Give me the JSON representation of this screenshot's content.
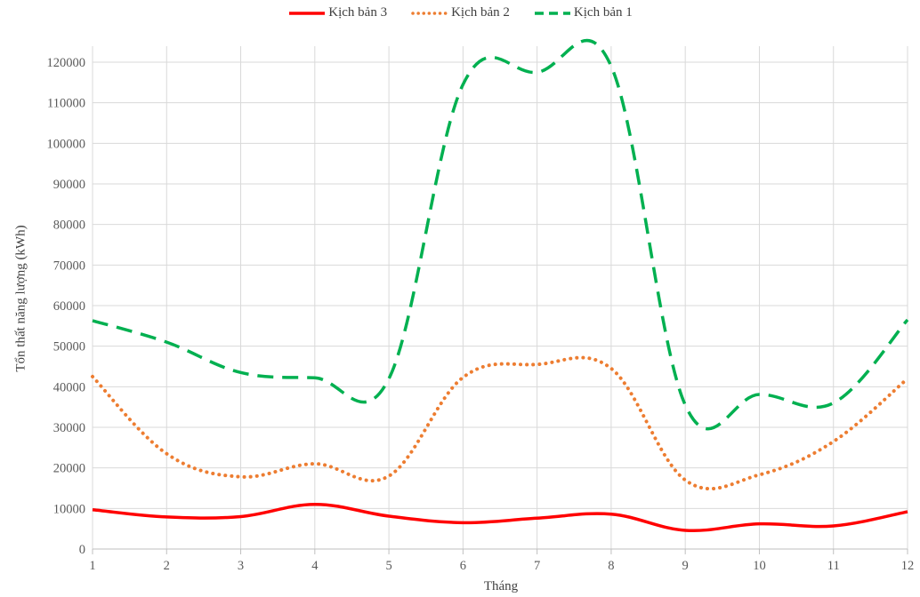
{
  "chart_data": {
    "type": "line",
    "xlabel": "Tháng",
    "ylabel": "Tổn thất năng lượng (kWh)",
    "x": [
      1,
      2,
      3,
      4,
      5,
      6,
      7,
      8,
      9,
      10,
      11,
      12
    ],
    "ylim": [
      0,
      120000
    ],
    "yticks": [
      0,
      10000,
      20000,
      30000,
      40000,
      50000,
      60000,
      70000,
      80000,
      90000,
      100000,
      110000,
      120000
    ],
    "grid": true,
    "legend_position": "top",
    "series": [
      {
        "name": "Kịch bản 3",
        "color": "#ff0000",
        "style": "solid",
        "values": [
          9700,
          7900,
          8000,
          11000,
          8100,
          6500,
          7600,
          8600,
          4600,
          6200,
          5700,
          9200
        ]
      },
      {
        "name": "Kịch bản 2",
        "color": "#ed7d31",
        "style": "dotted",
        "values": [
          42500,
          23500,
          17800,
          21000,
          18000,
          42300,
          45500,
          44500,
          17000,
          18300,
          26500,
          42000
        ]
      },
      {
        "name": "Kịch bản 1",
        "color": "#00b050",
        "style": "dashed",
        "values": [
          56300,
          51000,
          43500,
          42200,
          42000,
          114500,
          117500,
          119000,
          35500,
          38100,
          36000,
          56500
        ]
      }
    ]
  }
}
